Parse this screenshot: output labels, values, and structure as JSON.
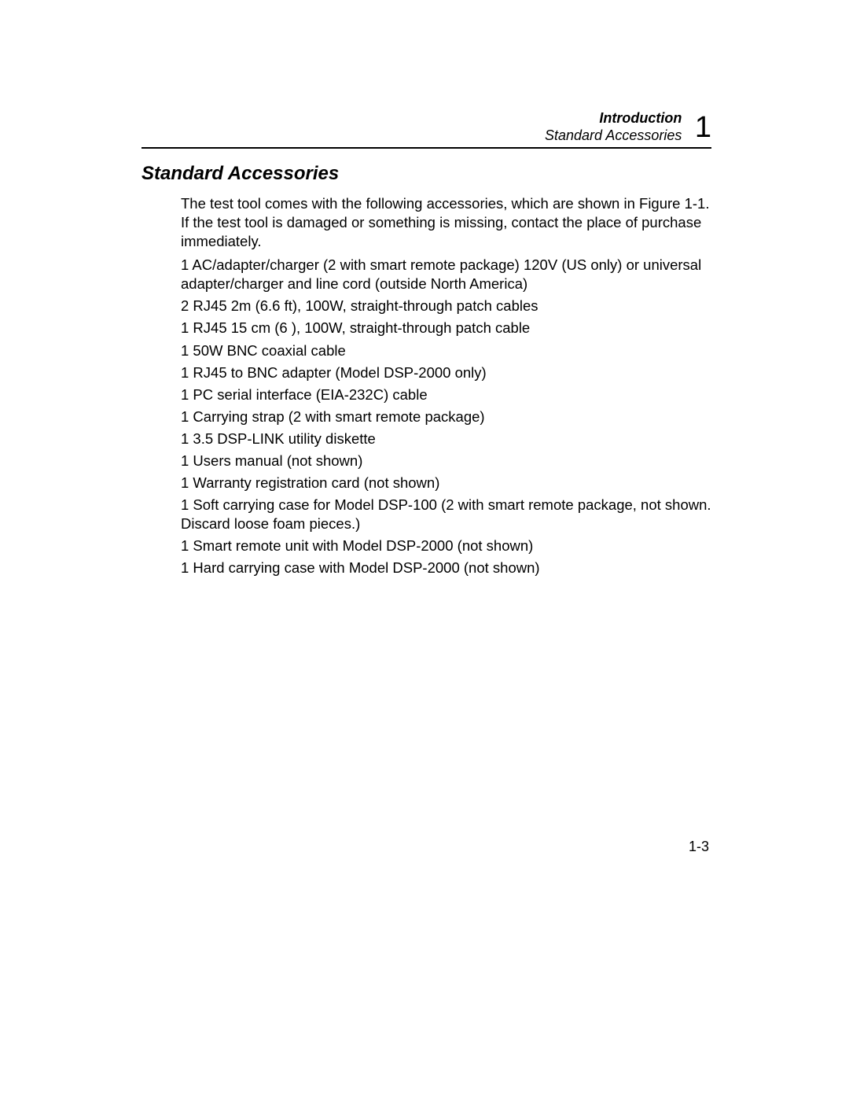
{
  "header": {
    "chapter_title": "Introduction",
    "section_name": "Standard Accessories",
    "chapter_number": "1"
  },
  "section": {
    "heading": "Standard Accessories",
    "intro_paragraph": "The test tool comes with the following accessories, which are shown in Figure 1-1. If the test tool is damaged or something is missing, contact the place of purchase immediately.",
    "accessories": [
      "1 AC/adapter/charger (2 with smart remote package) 120V (US only) or universal adapter/charger and line cord (outside North America)",
      "2 RJ45 2m (6.6 ft), 100W, straight-through patch cables",
      "1 RJ45 15 cm (6 ), 100W, straight-through patch cable",
      "1 50W BNC coaxial cable",
      "1 RJ45 to BNC adapter (Model DSP-2000 only)",
      "1 PC serial interface (EIA-232C) cable",
      "1 Carrying strap (2 with smart remote package)",
      "1 3.5  DSP-LINK utility diskette",
      "1 Users manual (not shown)",
      "1 Warranty registration card (not shown)",
      "1 Soft carrying case for Model DSP-100 (2 with smart remote package, not shown. Discard loose foam pieces.)",
      "1 Smart remote unit with Model DSP-2000 (not shown)",
      "1 Hard carrying case with Model DSP-2000 (not shown)"
    ]
  },
  "footer": {
    "page_number": "1-3"
  },
  "styles": {
    "background_color": "#ffffff",
    "text_color": "#000000",
    "heading_fontsize": 24,
    "body_fontsize": 18.5,
    "header_fontsize": 18,
    "chapter_number_fontsize": 38,
    "page_number_fontsize": 18,
    "rule_color": "#000000",
    "rule_width": 2
  }
}
